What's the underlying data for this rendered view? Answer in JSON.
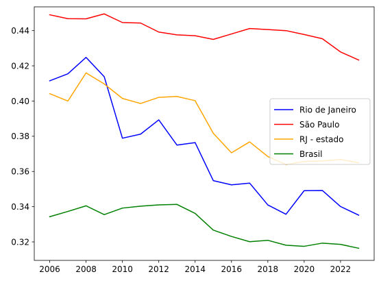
{
  "chart_data": {
    "type": "line",
    "title": "",
    "xlabel": "",
    "ylabel": "",
    "x": [
      2006,
      2007,
      2008,
      2009,
      2010,
      2011,
      2012,
      2013,
      2014,
      2015,
      2016,
      2017,
      2018,
      2019,
      2020,
      2021,
      2022,
      2023
    ],
    "xlim": [
      2005.15,
      2023.85
    ],
    "ylim": [
      0.3095,
      0.4535
    ],
    "xticks": [
      2006,
      2008,
      2010,
      2012,
      2014,
      2016,
      2018,
      2020,
      2022
    ],
    "yticks": [
      0.32,
      0.34,
      0.36,
      0.38,
      0.4,
      0.42,
      0.44
    ],
    "xtick_labels": [
      "2006",
      "2008",
      "2010",
      "2012",
      "2014",
      "2016",
      "2018",
      "2020",
      "2022"
    ],
    "ytick_labels": [
      "0.32",
      "0.34",
      "0.36",
      "0.38",
      "0.40",
      "0.42",
      "0.44"
    ],
    "grid": false,
    "legend_position": "center-right",
    "series": [
      {
        "name": "Rio de Janeiro",
        "color": "#0000ff",
        "values": [
          0.4115,
          0.4155,
          0.4248,
          0.4138,
          0.3789,
          0.3812,
          0.3893,
          0.375,
          0.3764,
          0.3548,
          0.3524,
          0.3534,
          0.341,
          0.3357,
          0.3491,
          0.3492,
          0.3401,
          0.3352
        ]
      },
      {
        "name": "São Paulo",
        "color": "#ff0000",
        "values": [
          0.449,
          0.4468,
          0.4467,
          0.4495,
          0.4446,
          0.4443,
          0.4392,
          0.4376,
          0.4371,
          0.435,
          0.4381,
          0.4412,
          0.4406,
          0.44,
          0.4378,
          0.4354,
          0.4279,
          0.4233
        ]
      },
      {
        "name": "RJ - estado",
        "color": "#ffa500",
        "values": [
          0.4042,
          0.4,
          0.416,
          0.4097,
          0.4015,
          0.3986,
          0.4021,
          0.4026,
          0.4002,
          0.3817,
          0.3706,
          0.3768,
          0.3685,
          0.3639,
          0.3657,
          0.366,
          0.3668,
          0.3649
        ]
      },
      {
        "name": "Brasil",
        "color": "#008000",
        "values": [
          0.3343,
          0.3373,
          0.3405,
          0.3355,
          0.3392,
          0.3403,
          0.341,
          0.3413,
          0.3362,
          0.3267,
          0.3231,
          0.3201,
          0.3209,
          0.3181,
          0.3175,
          0.3193,
          0.3186,
          0.3164
        ]
      }
    ]
  }
}
